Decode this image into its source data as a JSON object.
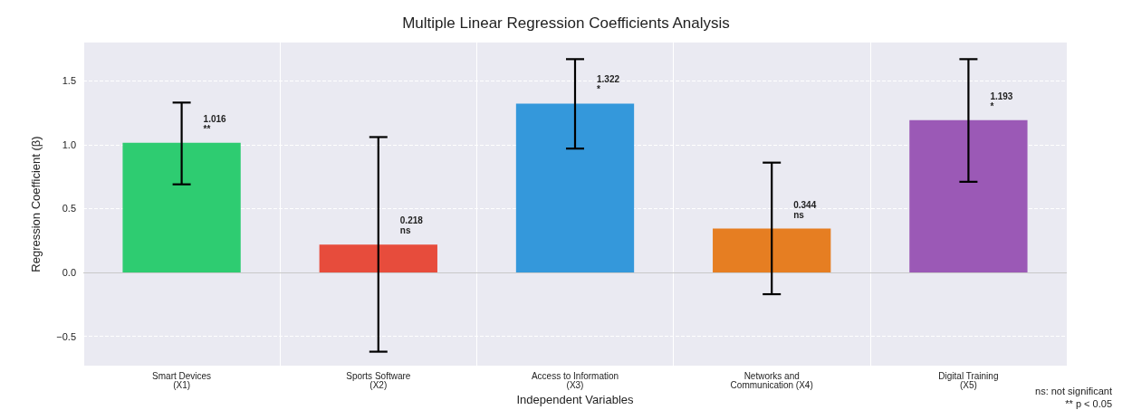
{
  "chart_data": {
    "type": "bar",
    "title": "Multiple Linear Regression Coefficients Analysis",
    "xlabel": "Independent Variables",
    "ylabel": "Regression Coefficient (β)",
    "categories": [
      "Smart Devices\n(X1)",
      "Sports Software\n(X2)",
      "Access to Information\n(X3)",
      "Networks and\nCommunication (X4)",
      "Digital Training\n(X5)"
    ],
    "values": [
      1.016,
      0.218,
      1.322,
      0.344,
      1.193
    ],
    "colors": [
      "#2ecc71",
      "#e74c3c",
      "#3498db",
      "#e67e22",
      "#9b59b6"
    ],
    "errors": [
      [
        0.69,
        1.33
      ],
      [
        -0.62,
        1.06
      ],
      [
        0.97,
        1.67
      ],
      [
        -0.17,
        0.86
      ],
      [
        0.71,
        1.67
      ]
    ],
    "value_labels": [
      "1.016\n**",
      "0.218\nns",
      "1.322\n*",
      "0.344\nns",
      "1.193\n*"
    ],
    "ylim": [
      -0.73,
      1.8
    ],
    "yticks": [
      {
        "value": -0.5,
        "label": "−0.5"
      },
      {
        "value": 0,
        "label": "0.0"
      },
      {
        "value": 0.5,
        "label": "0.5"
      },
      {
        "value": 1,
        "label": "1.0"
      },
      {
        "value": 1.5,
        "label": "1.5"
      }
    ],
    "ref_lines": [
      {
        "axis": "y",
        "value": 0,
        "color": "#c8c8c8"
      }
    ],
    "annotations": [
      "ns: not significant",
      "** p < 0.05"
    ],
    "grid": true
  }
}
